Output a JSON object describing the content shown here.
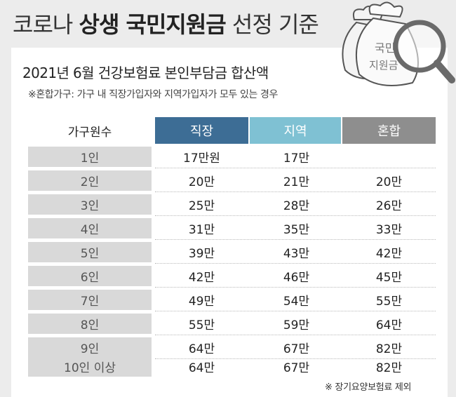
{
  "title": {
    "part1": "코로나 ",
    "bold": "상생 국민지원금",
    "part2": " 선정 기준"
  },
  "subtitle": "2021년 6월 건강보험료 본인부담금 합산액",
  "note": "※혼합가구: 가구 내 직장가입자와 지역가입자가 모두 있는 경우",
  "illustration_text": {
    "line1": "국민",
    "line2": "지원금"
  },
  "table": {
    "headers": [
      "가구원수",
      "직장",
      "지역",
      "혼합"
    ],
    "rows": [
      {
        "label": "1인",
        "jikjang": "17만원",
        "jiyeok": "17만",
        "honhap": ""
      },
      {
        "label": "2인",
        "jikjang": "20만",
        "jiyeok": "21만",
        "honhap": "20만"
      },
      {
        "label": "3인",
        "jikjang": "25만",
        "jiyeok": "28만",
        "honhap": "26만"
      },
      {
        "label": "4인",
        "jikjang": "31만",
        "jiyeok": "35만",
        "honhap": "33만"
      },
      {
        "label": "5인",
        "jikjang": "39만",
        "jiyeok": "43만",
        "honhap": "42만"
      },
      {
        "label": "6인",
        "jikjang": "42만",
        "jiyeok": "46만",
        "honhap": "45만"
      },
      {
        "label": "7인",
        "jikjang": "49만",
        "jiyeok": "54만",
        "honhap": "55만"
      },
      {
        "label": "8인",
        "jikjang": "55만",
        "jiyeok": "59만",
        "honhap": "64만"
      },
      {
        "label": "9인",
        "jikjang": "64만",
        "jiyeok": "67만",
        "honhap": "82만"
      },
      {
        "label": "10인 이상",
        "jikjang": "64만",
        "jiyeok": "67만",
        "honhap": "82만"
      }
    ]
  },
  "footnote": "※ 장기요양보험료 제외",
  "colors": {
    "jikjang": "#3d6d95",
    "jiyeok": "#7fc1d3",
    "honhap": "#8e8e8e",
    "rowlabel_bg": "#d9d9d9"
  }
}
